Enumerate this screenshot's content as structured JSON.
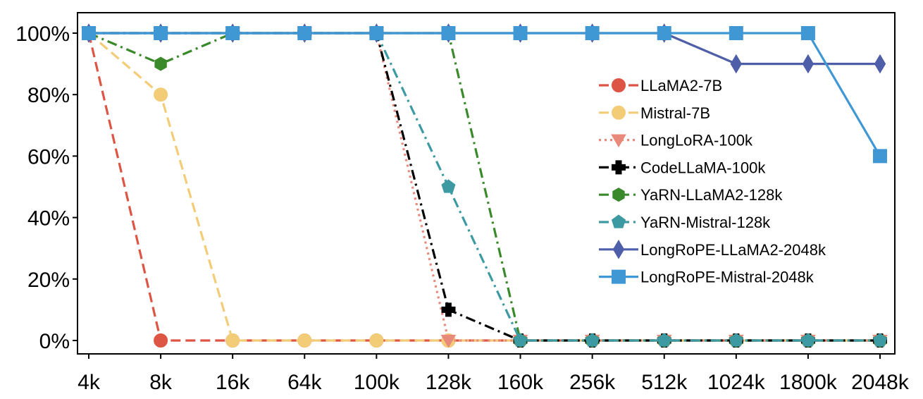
{
  "chart_data": {
    "type": "line",
    "title": "",
    "xlabel": "",
    "ylabel": "",
    "categories": [
      "4k",
      "8k",
      "16k",
      "64k",
      "100k",
      "128k",
      "160k",
      "256k",
      "512k",
      "1024k",
      "1800k",
      "2048k"
    ],
    "ylim": [
      0,
      100
    ],
    "yticks": [
      0,
      20,
      40,
      60,
      80,
      100
    ],
    "ytick_labels": [
      "0%",
      "20%",
      "40%",
      "60%",
      "80%",
      "100%"
    ],
    "grid": false,
    "legend_position": "right",
    "series": [
      {
        "name": "LLaMA2-7B",
        "color": "#dd5544",
        "dash": "dashed",
        "marker": "circle",
        "values": [
          100,
          0,
          0,
          0,
          0,
          0,
          0,
          0,
          0,
          0,
          0,
          0
        ]
      },
      {
        "name": "Mistral-7B",
        "color": "#f2cc77",
        "dash": "dashed",
        "marker": "circle",
        "values": [
          100,
          80,
          0,
          0,
          0,
          0,
          0,
          0,
          0,
          0,
          0,
          0
        ]
      },
      {
        "name": "LongLoRA-100k",
        "color": "#e8897b",
        "dash": "dotted",
        "marker": "triangle-down",
        "values": [
          100,
          100,
          100,
          100,
          100,
          0,
          0,
          0,
          0,
          0,
          0,
          0
        ]
      },
      {
        "name": "CodeLLaMA-100k",
        "color": "#000000",
        "dash": "dashdot",
        "marker": "plus",
        "values": [
          100,
          100,
          100,
          100,
          100,
          10,
          0,
          0,
          0,
          0,
          0,
          0
        ]
      },
      {
        "name": "YaRN-LLaMA2-128k",
        "color": "#3a8a2c",
        "dash": "dashdot",
        "marker": "hexagon",
        "values": [
          100,
          90,
          100,
          100,
          100,
          100,
          0,
          0,
          0,
          0,
          0,
          0
        ]
      },
      {
        "name": "YaRN-Mistral-128k",
        "color": "#3d9aa2",
        "dash": "dashdot",
        "marker": "pentagon",
        "values": [
          100,
          100,
          100,
          100,
          100,
          50,
          0,
          0,
          0,
          0,
          0,
          0
        ]
      },
      {
        "name": "LongRoPE-LLaMA2-2048k",
        "color": "#4f5ea8",
        "dash": "solid",
        "marker": "diamond",
        "values": [
          100,
          100,
          100,
          100,
          100,
          100,
          100,
          100,
          100,
          90,
          90,
          90
        ]
      },
      {
        "name": "LongRoPE-Mistral-2048k",
        "color": "#3f97d4",
        "dash": "solid",
        "marker": "square",
        "values": [
          100,
          100,
          100,
          100,
          100,
          100,
          100,
          100,
          100,
          100,
          100,
          60
        ]
      }
    ]
  }
}
